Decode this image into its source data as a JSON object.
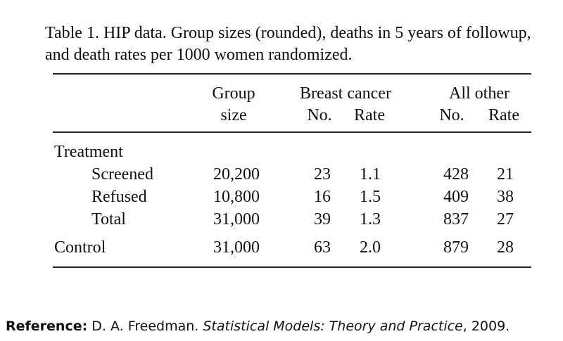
{
  "caption": "Table 1.  HIP data.  Group sizes (rounded), deaths in 5 years of followup, and death rates per 1000 women randomized.",
  "table": {
    "headers": {
      "group_size_line1": "Group",
      "group_size_line2": "size",
      "breast_cancer": "Breast cancer",
      "all_other": "All other",
      "no": "No.",
      "rate": "Rate"
    },
    "treatment_label": "Treatment",
    "rows": [
      {
        "label": "Screened",
        "group_size": "20,200",
        "bc_no": "23",
        "bc_rate": "1.1",
        "other_no": "428",
        "other_rate": "21"
      },
      {
        "label": "Refused",
        "group_size": "10,800",
        "bc_no": "16",
        "bc_rate": "1.5",
        "other_no": "409",
        "other_rate": "38"
      },
      {
        "label": "Total",
        "group_size": "31,000",
        "bc_no": "39",
        "bc_rate": "1.3",
        "other_no": "837",
        "other_rate": "27"
      }
    ],
    "control": {
      "label": "Control",
      "group_size": "31,000",
      "bc_no": "63",
      "bc_rate": "2.0",
      "other_no": "879",
      "other_rate": "28"
    }
  },
  "reference": {
    "label": "Reference:",
    "author": "D. A. Freedman.",
    "title": "Statistical Models: Theory and Practice",
    "year": ", 2009."
  }
}
